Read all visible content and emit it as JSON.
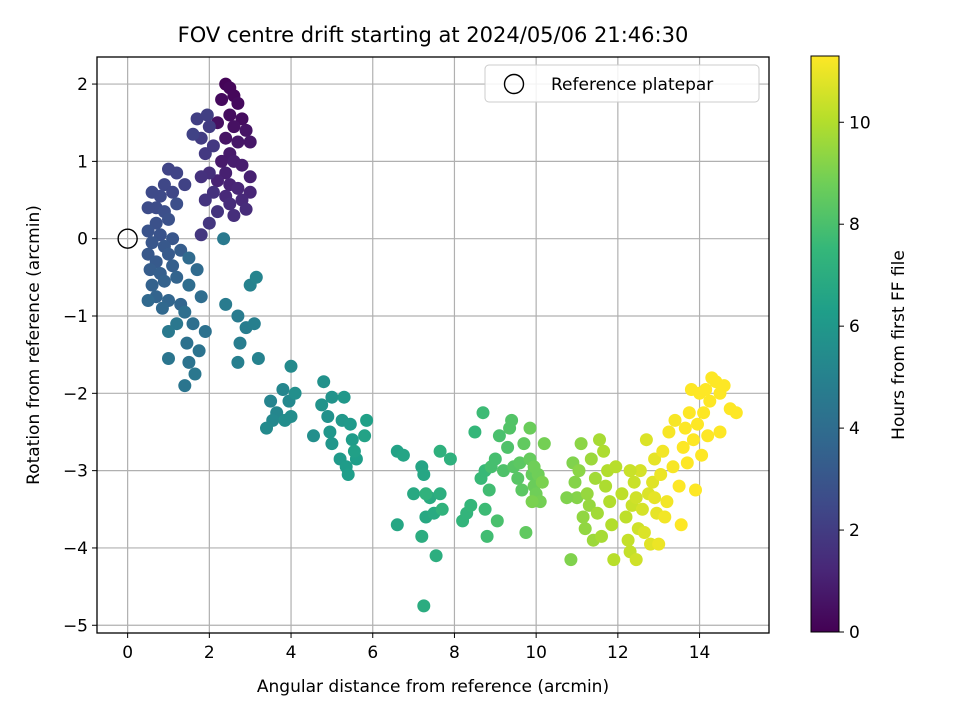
{
  "chart_data": {
    "type": "scatter",
    "title": "FOV centre drift starting at 2024/05/06 21:46:30",
    "xlabel": "Angular distance from reference (arcmin)",
    "ylabel": "Rotation from reference (arcmin)",
    "xlim": [
      -0.75,
      15.7
    ],
    "ylim": [
      -5.1,
      2.35
    ],
    "xticks": [
      0,
      2,
      4,
      6,
      8,
      10,
      12,
      14
    ],
    "yticks": [
      -5,
      -4,
      -3,
      -2,
      -1,
      0,
      1,
      2
    ],
    "xtick_labels": [
      "0",
      "2",
      "4",
      "6",
      "8",
      "10",
      "12",
      "14"
    ],
    "ytick_labels": [
      "−5",
      "−4",
      "−3",
      "−2",
      "−1",
      "0",
      "1",
      "2"
    ],
    "grid": true,
    "legend": {
      "placement": "top-right",
      "entries": [
        "Reference platepar"
      ]
    },
    "reference_marker": {
      "x": 0,
      "y": 0,
      "label": "Reference platepar"
    },
    "colorbar": {
      "label": "Hours from first FF file",
      "range": [
        0,
        11.3
      ],
      "ticks": [
        0,
        2,
        4,
        6,
        8,
        10
      ],
      "tick_labels": [
        "0",
        "2",
        "4",
        "6",
        "8",
        "10"
      ],
      "colormap": "viridis"
    },
    "colormap_stops": [
      "#440154",
      "#482878",
      "#3e4a89",
      "#31688e",
      "#26828e",
      "#1f9e89",
      "#35b779",
      "#6ece58",
      "#b5de2b",
      "#fde725"
    ],
    "points": [
      [
        2.4,
        2.0,
        0.1
      ],
      [
        2.5,
        1.95,
        0.2
      ],
      [
        2.6,
        1.85,
        0.2
      ],
      [
        2.3,
        1.8,
        0.3
      ],
      [
        2.7,
        1.75,
        0.3
      ],
      [
        2.5,
        1.6,
        0.4
      ],
      [
        2.8,
        1.55,
        0.4
      ],
      [
        2.2,
        1.5,
        0.5
      ],
      [
        2.6,
        1.45,
        0.5
      ],
      [
        2.9,
        1.4,
        0.6
      ],
      [
        2.4,
        1.3,
        0.6
      ],
      [
        2.7,
        1.25,
        0.7
      ],
      [
        3.0,
        1.25,
        0.7
      ],
      [
        2.5,
        1.1,
        0.8
      ],
      [
        2.3,
        1.0,
        0.8
      ],
      [
        2.6,
        1.0,
        0.9
      ],
      [
        2.8,
        0.95,
        0.9
      ],
      [
        2.4,
        0.85,
        1.0
      ],
      [
        3.0,
        0.8,
        1.0
      ],
      [
        2.2,
        0.75,
        1.1
      ],
      [
        2.5,
        0.7,
        1.1
      ],
      [
        2.7,
        0.65,
        1.2
      ],
      [
        3.0,
        0.6,
        1.2
      ],
      [
        2.4,
        0.55,
        1.3
      ],
      [
        2.8,
        0.5,
        1.3
      ],
      [
        2.5,
        0.45,
        1.4
      ],
      [
        2.9,
        0.38,
        1.4
      ],
      [
        2.6,
        0.3,
        1.5
      ],
      [
        2.0,
        0.85,
        1.5
      ],
      [
        1.8,
        0.8,
        1.6
      ],
      [
        2.1,
        0.6,
        1.6
      ],
      [
        1.9,
        0.5,
        1.7
      ],
      [
        2.2,
        0.35,
        1.7
      ],
      [
        2.0,
        0.2,
        1.8
      ],
      [
        1.8,
        0.05,
        1.8
      ],
      [
        1.9,
        1.1,
        1.9
      ],
      [
        2.1,
        1.2,
        1.9
      ],
      [
        1.8,
        1.3,
        2.0
      ],
      [
        2.0,
        1.45,
        2.0
      ],
      [
        1.7,
        1.55,
        2.1
      ],
      [
        1.95,
        1.6,
        2.1
      ],
      [
        1.6,
        1.35,
        2.2
      ],
      [
        1.4,
        0.7,
        2.2
      ],
      [
        1.2,
        0.85,
        2.3
      ],
      [
        1.0,
        0.9,
        2.3
      ],
      [
        0.9,
        0.7,
        2.4
      ],
      [
        1.1,
        0.6,
        2.4
      ],
      [
        0.8,
        0.55,
        2.5
      ],
      [
        0.6,
        0.6,
        2.5
      ],
      [
        0.7,
        0.4,
        2.6
      ],
      [
        0.5,
        0.4,
        2.6
      ],
      [
        0.9,
        0.35,
        2.7
      ],
      [
        1.2,
        0.45,
        2.7
      ],
      [
        1.0,
        0.25,
        2.8
      ],
      [
        0.7,
        0.2,
        2.8
      ],
      [
        0.5,
        0.1,
        2.9
      ],
      [
        0.8,
        0.05,
        2.9
      ],
      [
        1.1,
        0.0,
        3.0
      ],
      [
        0.6,
        -0.05,
        3.0
      ],
      [
        0.9,
        -0.1,
        3.1
      ],
      [
        0.5,
        -0.2,
        3.1
      ],
      [
        0.7,
        -0.3,
        3.2
      ],
      [
        1.0,
        -0.2,
        3.2
      ],
      [
        1.3,
        -0.15,
        3.3
      ],
      [
        0.55,
        -0.4,
        3.3
      ],
      [
        0.8,
        -0.45,
        3.4
      ],
      [
        1.1,
        -0.35,
        3.4
      ],
      [
        0.6,
        -0.6,
        3.5
      ],
      [
        0.9,
        -0.55,
        3.5
      ],
      [
        1.2,
        -0.5,
        3.6
      ],
      [
        0.7,
        -0.75,
        3.6
      ],
      [
        1.0,
        -0.8,
        3.7
      ],
      [
        1.3,
        -0.85,
        3.7
      ],
      [
        0.5,
        -0.8,
        3.8
      ],
      [
        0.85,
        -0.9,
        3.8
      ],
      [
        1.5,
        -0.25,
        3.9
      ],
      [
        1.7,
        -0.4,
        3.9
      ],
      [
        1.5,
        -0.6,
        4.0
      ],
      [
        1.8,
        -0.75,
        4.0
      ],
      [
        1.4,
        -0.95,
        4.1
      ],
      [
        1.6,
        -1.1,
        4.1
      ],
      [
        1.9,
        -1.2,
        4.2
      ],
      [
        1.45,
        -1.35,
        4.2
      ],
      [
        1.75,
        -1.45,
        4.3
      ],
      [
        1.5,
        -1.6,
        4.3
      ],
      [
        1.0,
        -1.55,
        4.4
      ],
      [
        1.4,
        -1.9,
        4.4
      ],
      [
        1.65,
        -1.75,
        4.5
      ],
      [
        1.2,
        -1.1,
        4.5
      ],
      [
        1.0,
        -1.2,
        4.6
      ],
      [
        2.35,
        0.0,
        4.6
      ],
      [
        2.4,
        -0.85,
        4.7
      ],
      [
        2.7,
        -1.0,
        4.7
      ],
      [
        2.9,
        -1.15,
        4.8
      ],
      [
        2.75,
        -1.35,
        4.8
      ],
      [
        3.1,
        -1.1,
        4.9
      ],
      [
        2.7,
        -1.6,
        4.9
      ],
      [
        3.2,
        -1.55,
        5.0
      ],
      [
        3.0,
        -0.6,
        5.0
      ],
      [
        3.15,
        -0.5,
        5.1
      ],
      [
        3.5,
        -2.1,
        5.1
      ],
      [
        3.65,
        -2.25,
        5.2
      ],
      [
        3.8,
        -1.95,
        5.2
      ],
      [
        3.55,
        -2.35,
        5.3
      ],
      [
        3.95,
        -2.1,
        5.3
      ],
      [
        3.4,
        -2.45,
        5.4
      ],
      [
        4.0,
        -1.65,
        5.4
      ],
      [
        4.0,
        -2.3,
        5.5
      ],
      [
        3.85,
        -2.35,
        5.5
      ],
      [
        4.1,
        -2.0,
        5.6
      ],
      [
        4.55,
        -2.55,
        5.6
      ],
      [
        4.8,
        -1.85,
        5.7
      ],
      [
        4.9,
        -2.3,
        5.7
      ],
      [
        4.75,
        -2.15,
        5.8
      ],
      [
        5.0,
        -2.05,
        5.8
      ],
      [
        4.95,
        -2.5,
        5.9
      ],
      [
        5.0,
        -2.65,
        5.9
      ],
      [
        5.25,
        -2.35,
        6.0
      ],
      [
        5.3,
        -2.05,
        6.0
      ],
      [
        5.45,
        -2.4,
        6.1
      ],
      [
        5.2,
        -2.85,
        6.1
      ],
      [
        5.5,
        -2.6,
        6.2
      ],
      [
        5.35,
        -2.95,
        6.2
      ],
      [
        5.6,
        -2.85,
        6.3
      ],
      [
        5.4,
        -3.05,
        6.3
      ],
      [
        5.55,
        -2.75,
        6.4
      ],
      [
        5.85,
        -2.35,
        6.4
      ],
      [
        5.8,
        -2.55,
        6.5
      ],
      [
        6.6,
        -2.75,
        6.5
      ],
      [
        6.75,
        -2.8,
        6.6
      ],
      [
        7.2,
        -2.95,
        6.6
      ],
      [
        6.6,
        -3.7,
        6.7
      ],
      [
        7.25,
        -3.05,
        6.7
      ],
      [
        7.0,
        -3.3,
        6.8
      ],
      [
        7.3,
        -3.6,
        6.8
      ],
      [
        7.4,
        -3.35,
        6.9
      ],
      [
        7.5,
        -3.55,
        6.9
      ],
      [
        7.2,
        -3.85,
        7.0
      ],
      [
        7.25,
        -4.75,
        7.0
      ],
      [
        7.55,
        -4.1,
        7.1
      ],
      [
        7.65,
        -3.3,
        7.1
      ],
      [
        7.65,
        -2.75,
        7.2
      ],
      [
        7.9,
        -2.85,
        7.2
      ],
      [
        7.7,
        -3.5,
        7.3
      ],
      [
        7.3,
        -3.3,
        7.3
      ],
      [
        8.2,
        -3.65,
        7.4
      ],
      [
        8.3,
        -3.55,
        7.4
      ],
      [
        8.4,
        -3.45,
        7.5
      ],
      [
        8.5,
        -2.5,
        7.5
      ],
      [
        8.65,
        -3.1,
        7.6
      ],
      [
        8.75,
        -3.0,
        7.6
      ],
      [
        8.7,
        -2.25,
        7.7
      ],
      [
        8.75,
        -3.5,
        7.7
      ],
      [
        8.8,
        -3.85,
        7.8
      ],
      [
        8.85,
        -3.25,
        7.8
      ],
      [
        8.9,
        -2.95,
        7.9
      ],
      [
        9.0,
        -2.85,
        7.9
      ],
      [
        9.1,
        -2.55,
        8.0
      ],
      [
        9.05,
        -3.65,
        8.0
      ],
      [
        9.2,
        -3.0,
        8.1
      ],
      [
        9.3,
        -2.7,
        8.1
      ],
      [
        9.35,
        -2.45,
        8.2
      ],
      [
        9.4,
        -2.35,
        8.2
      ],
      [
        9.45,
        -2.95,
        8.3
      ],
      [
        9.55,
        -3.1,
        8.3
      ],
      [
        9.6,
        -2.9,
        8.4
      ],
      [
        9.65,
        -3.25,
        8.4
      ],
      [
        9.7,
        -2.65,
        8.5
      ],
      [
        9.75,
        -3.8,
        8.5
      ],
      [
        9.85,
        -2.85,
        8.6
      ],
      [
        9.9,
        -3.05,
        8.6
      ],
      [
        9.95,
        -3.2,
        8.7
      ],
      [
        9.85,
        -2.45,
        8.7
      ],
      [
        10.0,
        -3.3,
        8.8
      ],
      [
        10.05,
        -3.05,
        8.8
      ],
      [
        10.1,
        -3.4,
        8.9
      ],
      [
        10.2,
        -2.65,
        8.9
      ],
      [
        10.15,
        -3.15,
        9.0
      ],
      [
        9.9,
        -3.4,
        9.0
      ],
      [
        10.85,
        -4.15,
        9.1
      ],
      [
        10.9,
        -2.9,
        9.1
      ],
      [
        10.95,
        -3.15,
        9.2
      ],
      [
        11.0,
        -3.35,
        9.2
      ],
      [
        11.05,
        -3.0,
        9.3
      ],
      [
        11.1,
        -2.65,
        9.3
      ],
      [
        11.15,
        -3.6,
        9.4
      ],
      [
        11.2,
        -3.75,
        9.4
      ],
      [
        11.25,
        -3.3,
        9.5
      ],
      [
        11.3,
        -3.45,
        9.5
      ],
      [
        11.35,
        -2.85,
        9.6
      ],
      [
        11.4,
        -3.9,
        9.6
      ],
      [
        11.45,
        -3.1,
        9.7
      ],
      [
        11.5,
        -3.55,
        9.7
      ],
      [
        11.55,
        -2.6,
        9.8
      ],
      [
        11.6,
        -3.85,
        9.8
      ],
      [
        11.65,
        -2.75,
        9.9
      ],
      [
        11.7,
        -3.2,
        9.9
      ],
      [
        11.75,
        -3.0,
        10.0
      ],
      [
        11.8,
        -3.4,
        10.0
      ],
      [
        11.9,
        -4.15,
        10.1
      ],
      [
        11.95,
        -2.95,
        10.1
      ],
      [
        12.1,
        -3.3,
        10.2
      ],
      [
        12.2,
        -3.6,
        10.2
      ],
      [
        12.25,
        -3.9,
        10.3
      ],
      [
        12.3,
        -4.05,
        10.3
      ],
      [
        12.35,
        -3.45,
        10.4
      ],
      [
        12.4,
        -3.15,
        10.4
      ],
      [
        12.45,
        -4.15,
        10.5
      ],
      [
        12.5,
        -3.75,
        10.5
      ],
      [
        12.55,
        -3.0,
        10.6
      ],
      [
        12.6,
        -3.5,
        10.6
      ],
      [
        12.7,
        -2.6,
        10.7
      ],
      [
        12.75,
        -3.3,
        10.7
      ],
      [
        12.8,
        -3.95,
        10.8
      ],
      [
        12.85,
        -3.15,
        10.8
      ],
      [
        12.9,
        -2.85,
        10.9
      ],
      [
        12.95,
        -3.55,
        10.9
      ],
      [
        13.0,
        -3.95,
        11.0
      ],
      [
        13.05,
        -3.05,
        11.0
      ],
      [
        13.1,
        -2.75,
        11.1
      ],
      [
        13.2,
        -3.4,
        11.1
      ],
      [
        13.25,
        -2.5,
        11.2
      ],
      [
        13.35,
        -2.95,
        11.2
      ],
      [
        13.4,
        -2.35,
        11.2
      ],
      [
        13.5,
        -3.2,
        11.3
      ],
      [
        13.55,
        -3.7,
        11.3
      ],
      [
        13.6,
        -2.7,
        11.3
      ],
      [
        13.65,
        -2.45,
        11.3
      ],
      [
        13.7,
        -2.9,
        11.3
      ],
      [
        13.75,
        -2.25,
        11.3
      ],
      [
        13.8,
        -1.95,
        11.3
      ],
      [
        13.85,
        -2.6,
        11.3
      ],
      [
        13.9,
        -3.25,
        11.3
      ],
      [
        13.95,
        -2.4,
        11.3
      ],
      [
        14.0,
        -2.0,
        11.3
      ],
      [
        14.05,
        -2.8,
        11.3
      ],
      [
        14.1,
        -2.25,
        11.3
      ],
      [
        14.15,
        -1.95,
        11.3
      ],
      [
        14.2,
        -2.55,
        11.3
      ],
      [
        14.25,
        -2.1,
        11.3
      ],
      [
        14.3,
        -1.8,
        11.3
      ],
      [
        14.4,
        -1.85,
        11.3
      ],
      [
        14.5,
        -2.0,
        11.3
      ],
      [
        14.5,
        -2.5,
        11.3
      ],
      [
        14.6,
        -1.9,
        11.3
      ],
      [
        14.75,
        -2.2,
        11.3
      ],
      [
        14.9,
        -2.25,
        11.3
      ],
      [
        12.3,
        -3.0,
        10.4
      ],
      [
        12.65,
        -3.8,
        10.7
      ],
      [
        13.15,
        -3.6,
        11.1
      ],
      [
        12.45,
        -3.35,
        10.5
      ],
      [
        11.85,
        -3.7,
        10.0
      ],
      [
        10.75,
        -3.35,
        9.1
      ],
      [
        9.95,
        -2.95,
        8.8
      ],
      [
        12.9,
        -3.35,
        10.9
      ]
    ]
  }
}
